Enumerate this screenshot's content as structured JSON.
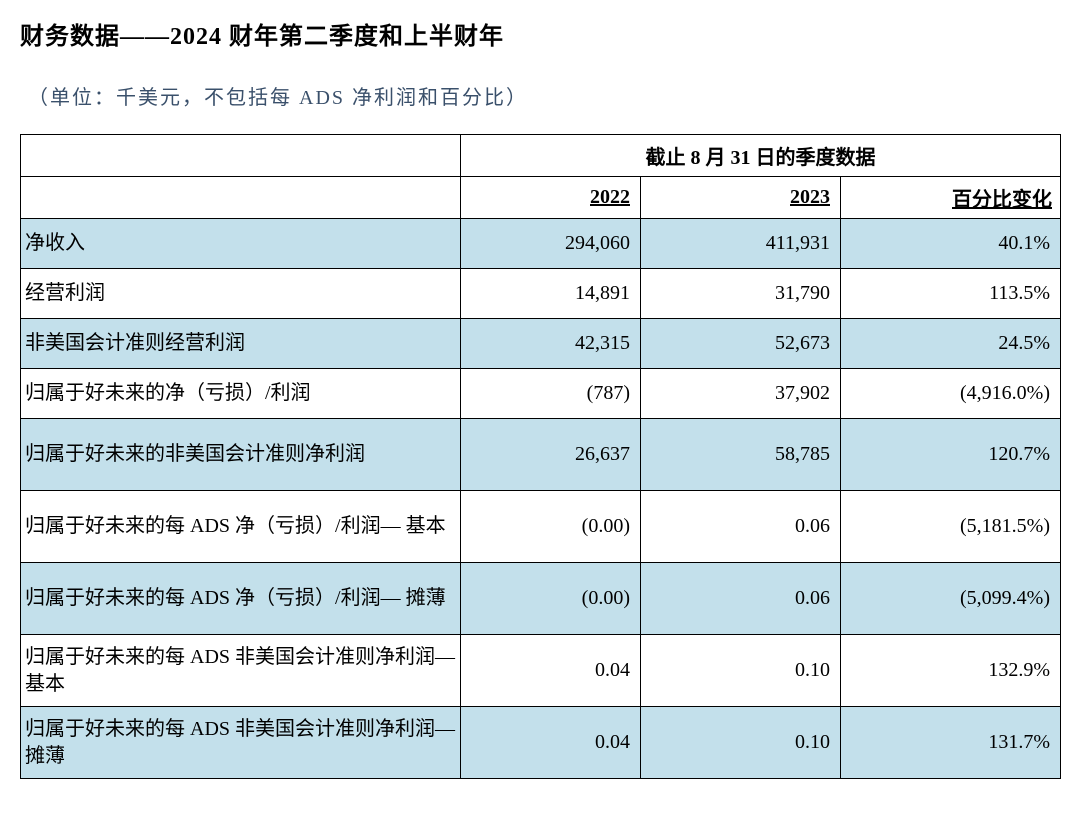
{
  "title": "财务数据——2024 财年第二季度和上半财年",
  "subtitle": "（单位：千美元，不包括每 ADS 净利润和百分比）",
  "headers": {
    "span": "截止 8 月 31 日的季度数据",
    "y2022": "2022",
    "y2023": "2023",
    "pct": "百分比变化"
  },
  "colors": {
    "highlight": "#c3e0eb",
    "background": "#ffffff",
    "border": "#000000",
    "text": "#000000",
    "subtitle": "#3a506b"
  },
  "typography": {
    "title_fontsize": 24,
    "subtitle_fontsize": 20,
    "cell_fontsize": 20,
    "font_family": "SimSun"
  },
  "rows": [
    {
      "label": "净收入",
      "v2022": "294,060",
      "v2023": "411,931",
      "pct": "40.1%",
      "hl": true
    },
    {
      "label": "经营利润",
      "v2022": "14,891",
      "v2023": "31,790",
      "pct": "113.5%",
      "hl": false
    },
    {
      "label": "非美国会计准则经营利润",
      "v2022": "42,315",
      "v2023": "52,673",
      "pct": "24.5%",
      "hl": true
    },
    {
      "label": "归属于好未来的净（亏损）/利润",
      "v2022": "(787)",
      "v2023": "37,902",
      "pct": "(4,916.0%)",
      "hl": false
    },
    {
      "label": "归属于好未来的非美国会计准则净利润",
      "v2022": "26,637",
      "v2023": "58,785",
      "pct": "120.7%",
      "hl": true
    },
    {
      "label": "归属于好未来的每 ADS 净（亏损）/利润— 基本",
      "v2022": "(0.00)",
      "v2023": "0.06",
      "pct": "(5,181.5%)",
      "hl": false
    },
    {
      "label": "归属于好未来的每 ADS 净（亏损）/利润— 摊薄",
      "v2022": "(0.00)",
      "v2023": "0.06",
      "pct": "(5,099.4%)",
      "hl": true
    },
    {
      "label": "归属于好未来的每 ADS 非美国会计准则净利润— 基本",
      "v2022": "0.04",
      "v2023": "0.10",
      "pct": "132.9%",
      "hl": false
    },
    {
      "label": "归属于好未来的每 ADS 非美国会计准则净利润— 摊薄",
      "v2022": "0.04",
      "v2023": "0.10",
      "pct": "131.7%",
      "hl": true
    }
  ]
}
